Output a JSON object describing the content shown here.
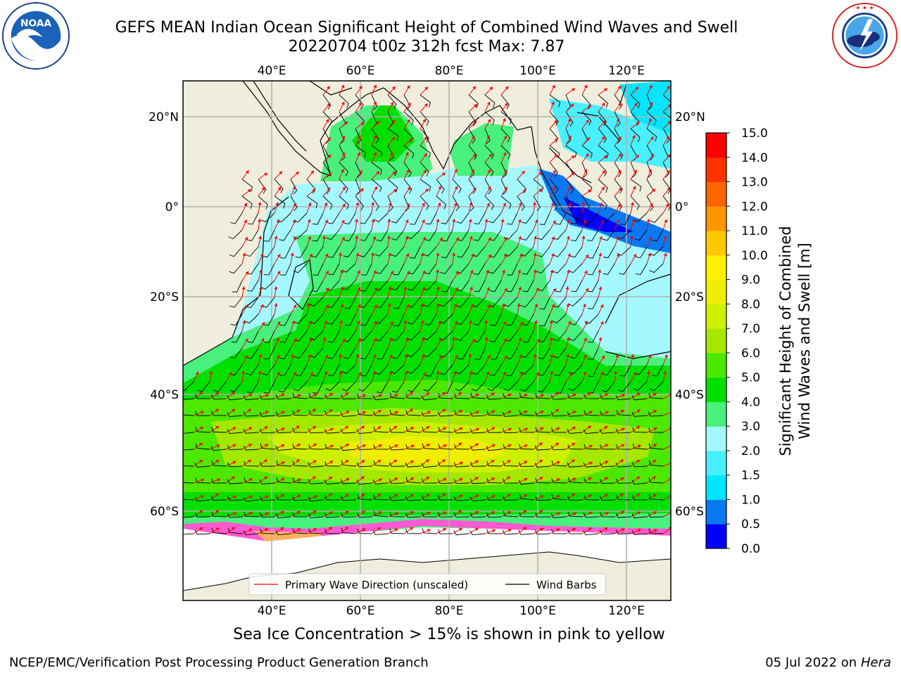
{
  "header": {
    "title_line1": "GEFS MEAN Indian Ocean Significant Height of Combined Wind Waves and Swell",
    "title_line2": "20220704 t00z 312h fcst   Max: 7.87"
  },
  "logos": {
    "noaa_text": "NOAA",
    "noaa_ring_text": "NATIONAL OCEANIC AND ATMOSPHERIC ADMINISTRATION · U.S. DEPARTMENT OF COMMERCE",
    "nws_ring_text": "NATIONAL WEATHER SERVICE"
  },
  "map": {
    "lon_labels": [
      "40°E",
      "60°E",
      "80°E",
      "100°E",
      "120°E"
    ],
    "lon_values": [
      40,
      60,
      80,
      100,
      120
    ],
    "lat_labels": [
      "20°N",
      "0°",
      "20°S",
      "40°S",
      "60°S"
    ],
    "lat_values": [
      20,
      0,
      -20,
      -40,
      -60
    ],
    "lon_range": [
      20,
      130
    ],
    "legend": {
      "wave_dir": "Primary Wave Direction (unscaled)",
      "wind_barbs": "Wind Barbs"
    }
  },
  "colorbar": {
    "label_line1": "Significant Height of Combined",
    "label_line2": "Wind Waves and Swell [m]",
    "ticks": [
      "0.0",
      "0.5",
      "1.0",
      "1.5",
      "2.0",
      "3.0",
      "4.0",
      "5.0",
      "6.0",
      "7.0",
      "8.0",
      "9.0",
      "10.0",
      "11.0",
      "12.0",
      "13.0",
      "14.0",
      "15.0"
    ],
    "colors": [
      "#0000ff",
      "#0a78f0",
      "#00e6ff",
      "#48f0ff",
      "#a4f8ff",
      "#48f07c",
      "#00e000",
      "#4ce800",
      "#a4e800",
      "#ccf000",
      "#f0ee00",
      "#fff000",
      "#ffc800",
      "#ff9600",
      "#ff6400",
      "#ff3200",
      "#ff0000"
    ]
  },
  "caption": "Sea Ice Concentration > 15% is shown in pink to yellow",
  "footer": {
    "left": "NCEP/EMC/Verification Post Processing Product Generation Branch",
    "right_prefix": "05 Jul 2022 on ",
    "right_host": "Hera"
  }
}
